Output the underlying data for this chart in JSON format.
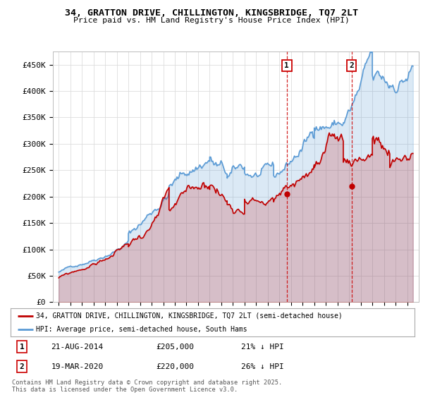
{
  "title_line1": "34, GRATTON DRIVE, CHILLINGTON, KINGSBRIDGE, TQ7 2LT",
  "title_line2": "Price paid vs. HM Land Registry's House Price Index (HPI)",
  "ylim": [
    0,
    475000
  ],
  "yticks": [
    0,
    50000,
    100000,
    150000,
    200000,
    250000,
    300000,
    350000,
    400000,
    450000
  ],
  "ytick_labels": [
    "£0",
    "£50K",
    "£100K",
    "£150K",
    "£200K",
    "£250K",
    "£300K",
    "£350K",
    "£400K",
    "£450K"
  ],
  "xlim_start": 1994.5,
  "xlim_end": 2026.0,
  "sale1_date": 2014.64,
  "sale1_price": 205000,
  "sale2_date": 2020.22,
  "sale2_price": 220000,
  "hpi_color": "#5b9bd5",
  "price_color": "#c00000",
  "dashed_line_color": "#cc0000",
  "legend_label_price": "34, GRATTON DRIVE, CHILLINGTON, KINGSBRIDGE, TQ7 2LT (semi-detached house)",
  "legend_label_hpi": "HPI: Average price, semi-detached house, South Hams",
  "annotation1_label": "1",
  "annotation1_date": "21-AUG-2014",
  "annotation1_price": "£205,000",
  "annotation1_pct": "21% ↓ HPI",
  "annotation2_label": "2",
  "annotation2_date": "19-MAR-2020",
  "annotation2_price": "£220,000",
  "annotation2_pct": "26% ↓ HPI",
  "footer": "Contains HM Land Registry data © Crown copyright and database right 2025.\nThis data is licensed under the Open Government Licence v3.0.",
  "background_color": "#ffffff",
  "grid_color": "#dddddd"
}
